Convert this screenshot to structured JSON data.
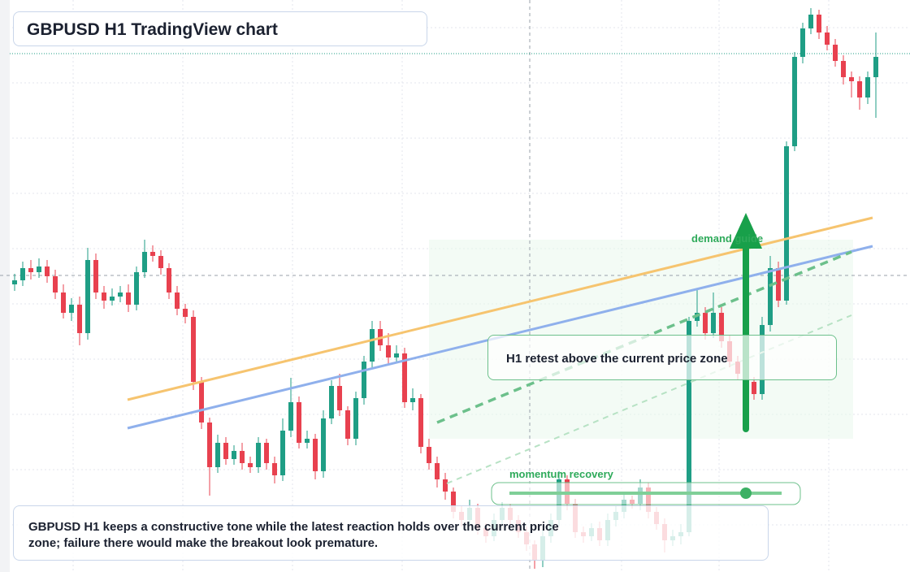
{
  "chart_data": {
    "type": "candlestick",
    "title": "GBPUSD H1 TradingView chart",
    "annotations": [
      "demand guide",
      "H1 retest above the current price zone",
      "momentum recovery"
    ],
    "caption": "GBPUSD H1 keeps a constructive tone while the latest reaction holds over the current price zone; failure there would make the breakout look premature.",
    "up_color": "#1f9e85",
    "down_color": "#e8414f",
    "ylim": [
      0,
      700
    ],
    "open": [
      350,
      355,
      370,
      365,
      372,
      360,
      340,
      315,
      325,
      290,
      380,
      340,
      330,
      335,
      340,
      325,
      365,
      390,
      385,
      370,
      340,
      320,
      310,
      230,
      180,
      125,
      155,
      135,
      145,
      130,
      125,
      155,
      130,
      115,
      170,
      205,
      155,
      160,
      120,
      185,
      225,
      195,
      160,
      210,
      255,
      295,
      275,
      260,
      265,
      205,
      210,
      150,
      130,
      110,
      95,
      70,
      60,
      75,
      50,
      40,
      60,
      75,
      60,
      45,
      30,
      10,
      40,
      60,
      110,
      80,
      45,
      40,
      50,
      35,
      60,
      70,
      85,
      80,
      100,
      70,
      55,
      35,
      40,
      45,
      305,
      315,
      290,
      315,
      280,
      255,
      240,
      230,
      215,
      300,
      370,
      330,
      520,
      630,
      665,
      682,
      660,
      645,
      625,
      605,
      600,
      580,
      605
    ],
    "high": [
      363,
      378,
      380,
      382,
      380,
      368,
      350,
      333,
      335,
      395,
      388,
      348,
      345,
      348,
      350,
      372,
      405,
      398,
      392,
      376,
      348,
      326,
      318,
      236,
      186,
      165,
      162,
      152,
      155,
      138,
      162,
      160,
      138,
      185,
      235,
      212,
      170,
      166,
      195,
      232,
      240,
      200,
      218,
      262,
      305,
      305,
      290,
      275,
      272,
      222,
      215,
      160,
      138,
      118,
      100,
      78,
      85,
      80,
      56,
      68,
      82,
      80,
      66,
      52,
      35,
      48,
      68,
      120,
      115,
      86,
      52,
      56,
      58,
      68,
      78,
      92,
      90,
      110,
      106,
      76,
      62,
      48,
      55,
      310,
      345,
      322,
      340,
      322,
      288,
      262,
      248,
      236,
      310,
      385,
      378,
      526,
      636,
      672,
      690,
      688,
      668,
      652,
      632,
      612,
      606,
      612,
      660
    ],
    "low": [
      342,
      348,
      356,
      358,
      352,
      332,
      308,
      305,
      275,
      282,
      332,
      320,
      324,
      328,
      316,
      318,
      358,
      378,
      362,
      332,
      312,
      302,
      220,
      172,
      90,
      118,
      128,
      128,
      122,
      118,
      118,
      122,
      105,
      108,
      162,
      148,
      148,
      110,
      112,
      178,
      188,
      152,
      152,
      202,
      248,
      268,
      252,
      254,
      198,
      195,
      142,
      122,
      100,
      85,
      62,
      52,
      54,
      42,
      32,
      34,
      52,
      54,
      38,
      22,
      0,
      2,
      32,
      52,
      72,
      38,
      32,
      34,
      28,
      28,
      52,
      62,
      74,
      72,
      62,
      48,
      20,
      28,
      30,
      40,
      298,
      282,
      284,
      272,
      248,
      232,
      222,
      208,
      208,
      292,
      322,
      325,
      514,
      622,
      658,
      652,
      638,
      618,
      596,
      580,
      565,
      572,
      555
    ],
    "close": [
      355,
      370,
      365,
      372,
      360,
      340,
      315,
      325,
      290,
      380,
      340,
      330,
      335,
      340,
      325,
      365,
      390,
      385,
      370,
      340,
      320,
      310,
      230,
      180,
      125,
      155,
      135,
      145,
      130,
      125,
      155,
      130,
      115,
      170,
      205,
      155,
      160,
      120,
      185,
      225,
      195,
      160,
      210,
      255,
      295,
      275,
      260,
      265,
      205,
      210,
      150,
      130,
      110,
      95,
      70,
      60,
      75,
      50,
      40,
      60,
      75,
      60,
      45,
      30,
      10,
      40,
      60,
      110,
      80,
      45,
      40,
      50,
      35,
      60,
      70,
      85,
      80,
      100,
      70,
      55,
      35,
      40,
      45,
      305,
      315,
      290,
      315,
      280,
      255,
      240,
      230,
      215,
      300,
      370,
      330,
      520,
      630,
      665,
      682,
      660,
      645,
      625,
      605,
      600,
      580,
      605,
      630
    ]
  }
}
